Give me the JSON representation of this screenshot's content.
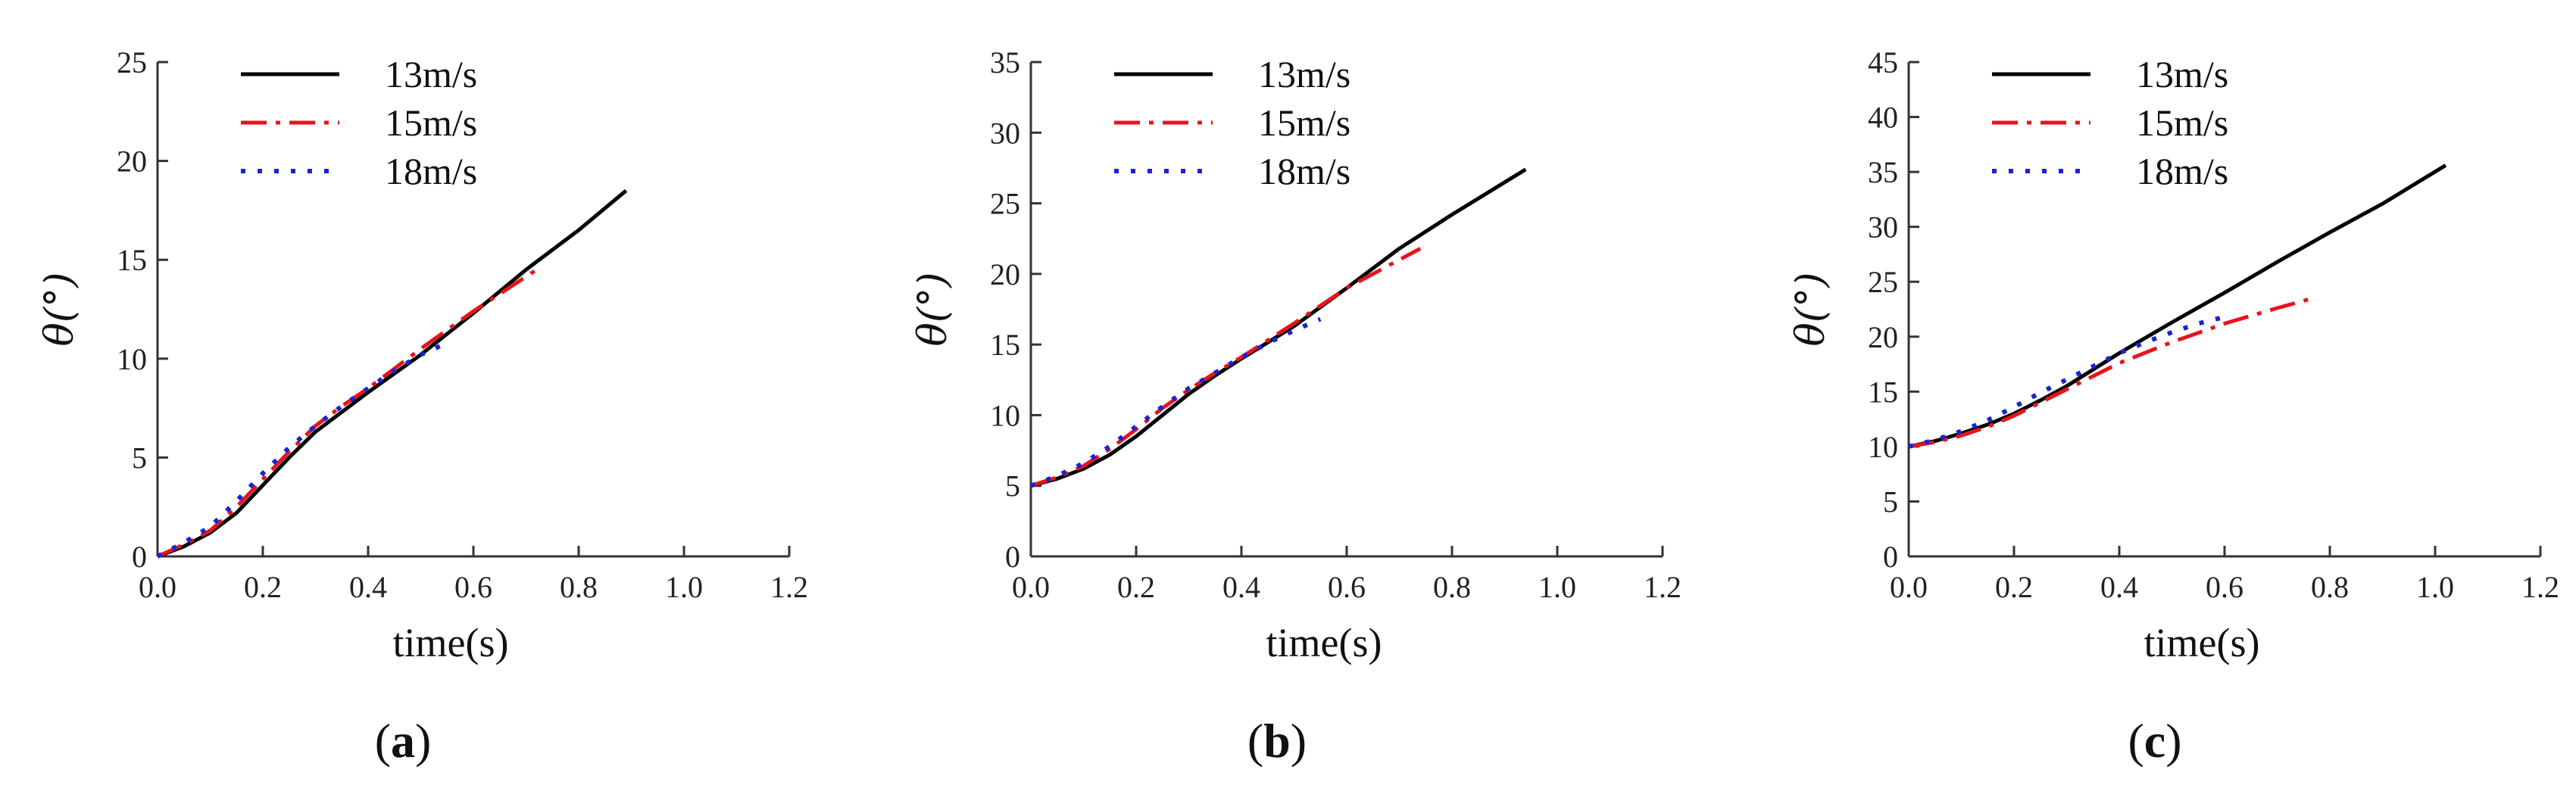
{
  "chart_data": [
    {
      "type": "line",
      "panel_label": "a",
      "xlabel": "time(s)",
      "ylabel": "θ(°)",
      "xlim": [
        0,
        1.2
      ],
      "ylim": [
        0,
        25
      ],
      "xticks": [
        "0.0",
        "0.2",
        "0.4",
        "0.6",
        "0.8",
        "1.0",
        "1.2"
      ],
      "yticks": [
        "0",
        "5",
        "10",
        "15",
        "20",
        "25"
      ],
      "legend_position": "top-left",
      "series": [
        {
          "name": "13m/s",
          "color": "#000000",
          "style": "solid",
          "x": [
            0.0,
            0.05,
            0.1,
            0.15,
            0.2,
            0.25,
            0.3,
            0.35,
            0.4,
            0.5,
            0.6,
            0.7,
            0.8,
            0.89
          ],
          "y": [
            0.0,
            0.5,
            1.2,
            2.2,
            3.6,
            5.0,
            6.3,
            7.3,
            8.3,
            10.2,
            12.3,
            14.5,
            16.5,
            18.5
          ]
        },
        {
          "name": "15m/s",
          "color": "#e8141c",
          "style": "dashdot",
          "x": [
            0.0,
            0.05,
            0.1,
            0.15,
            0.2,
            0.25,
            0.3,
            0.35,
            0.4,
            0.5,
            0.6,
            0.72
          ],
          "y": [
            0.0,
            0.6,
            1.3,
            2.5,
            3.9,
            5.3,
            6.6,
            7.6,
            8.5,
            10.5,
            12.4,
            14.5
          ]
        },
        {
          "name": "18m/s",
          "color": "#1a22d6",
          "style": "dotted",
          "x": [
            0.0,
            0.05,
            0.1,
            0.15,
            0.2,
            0.25,
            0.3,
            0.35,
            0.4,
            0.45,
            0.5,
            0.55
          ],
          "y": [
            0.0,
            0.7,
            1.5,
            2.8,
            4.2,
            5.5,
            6.6,
            7.6,
            8.5,
            9.4,
            10.2,
            10.8
          ]
        }
      ]
    },
    {
      "type": "line",
      "panel_label": "b",
      "xlabel": "time(s)",
      "ylabel": "θ(°)",
      "xlim": [
        0,
        1.2
      ],
      "ylim": [
        0,
        35
      ],
      "xticks": [
        "0.0",
        "0.2",
        "0.4",
        "0.6",
        "0.8",
        "1.0",
        "1.2"
      ],
      "yticks": [
        "0",
        "5",
        "10",
        "15",
        "20",
        "25",
        "30",
        "35"
      ],
      "legend_position": "top-left",
      "series": [
        {
          "name": "13m/s",
          "color": "#000000",
          "style": "solid",
          "x": [
            0.0,
            0.05,
            0.1,
            0.15,
            0.2,
            0.25,
            0.3,
            0.35,
            0.4,
            0.5,
            0.6,
            0.7,
            0.8,
            0.94
          ],
          "y": [
            5.0,
            5.5,
            6.2,
            7.2,
            8.5,
            10.0,
            11.5,
            12.8,
            14.0,
            16.3,
            19.0,
            21.8,
            24.2,
            27.4
          ]
        },
        {
          "name": "15m/s",
          "color": "#e8141c",
          "style": "dashdot",
          "x": [
            0.0,
            0.05,
            0.1,
            0.15,
            0.2,
            0.25,
            0.3,
            0.35,
            0.4,
            0.5,
            0.6,
            0.74
          ],
          "y": [
            5.0,
            5.6,
            6.4,
            7.6,
            9.0,
            10.5,
            11.8,
            13.0,
            14.1,
            16.5,
            19.0,
            21.8
          ]
        },
        {
          "name": "18m/s",
          "color": "#1a22d6",
          "style": "dotted",
          "x": [
            0.0,
            0.05,
            0.1,
            0.15,
            0.2,
            0.25,
            0.3,
            0.35,
            0.4,
            0.45,
            0.5,
            0.55
          ],
          "y": [
            5.0,
            5.7,
            6.6,
            7.8,
            9.2,
            10.6,
            11.9,
            13.0,
            14.1,
            15.1,
            16.0,
            16.8
          ]
        }
      ]
    },
    {
      "type": "line",
      "panel_label": "c",
      "xlabel": "time(s)",
      "ylabel": "θ(°)",
      "xlim": [
        0,
        1.2
      ],
      "ylim": [
        0,
        45
      ],
      "xticks": [
        "0.0",
        "0.2",
        "0.4",
        "0.6",
        "0.8",
        "1.0",
        "1.2"
      ],
      "yticks": [
        "0",
        "5",
        "10",
        "15",
        "20",
        "25",
        "30",
        "35",
        "40",
        "45"
      ],
      "legend_position": "top-left",
      "series": [
        {
          "name": "13m/s",
          "color": "#000000",
          "style": "solid",
          "x": [
            0.0,
            0.05,
            0.1,
            0.15,
            0.2,
            0.25,
            0.3,
            0.35,
            0.4,
            0.5,
            0.6,
            0.7,
            0.8,
            0.9,
            1.02
          ],
          "y": [
            10.0,
            10.5,
            11.2,
            12.0,
            13.0,
            14.2,
            15.5,
            17.0,
            18.5,
            21.3,
            24.0,
            26.8,
            29.5,
            32.1,
            35.6
          ]
        },
        {
          "name": "15m/s",
          "color": "#e8141c",
          "style": "dashdot",
          "x": [
            0.0,
            0.05,
            0.1,
            0.15,
            0.2,
            0.25,
            0.3,
            0.35,
            0.4,
            0.5,
            0.6,
            0.7,
            0.76
          ],
          "y": [
            10.0,
            10.4,
            11.0,
            11.8,
            12.8,
            14.0,
            15.2,
            16.4,
            17.6,
            19.5,
            21.2,
            22.6,
            23.4
          ]
        },
        {
          "name": "18m/s",
          "color": "#1a22d6",
          "style": "dotted",
          "x": [
            0.0,
            0.05,
            0.1,
            0.15,
            0.2,
            0.25,
            0.3,
            0.35,
            0.4,
            0.45,
            0.5,
            0.55,
            0.6
          ],
          "y": [
            10.0,
            10.6,
            11.4,
            12.4,
            13.6,
            14.9,
            16.1,
            17.3,
            18.5,
            19.5,
            20.4,
            21.2,
            21.8
          ]
        }
      ]
    }
  ]
}
